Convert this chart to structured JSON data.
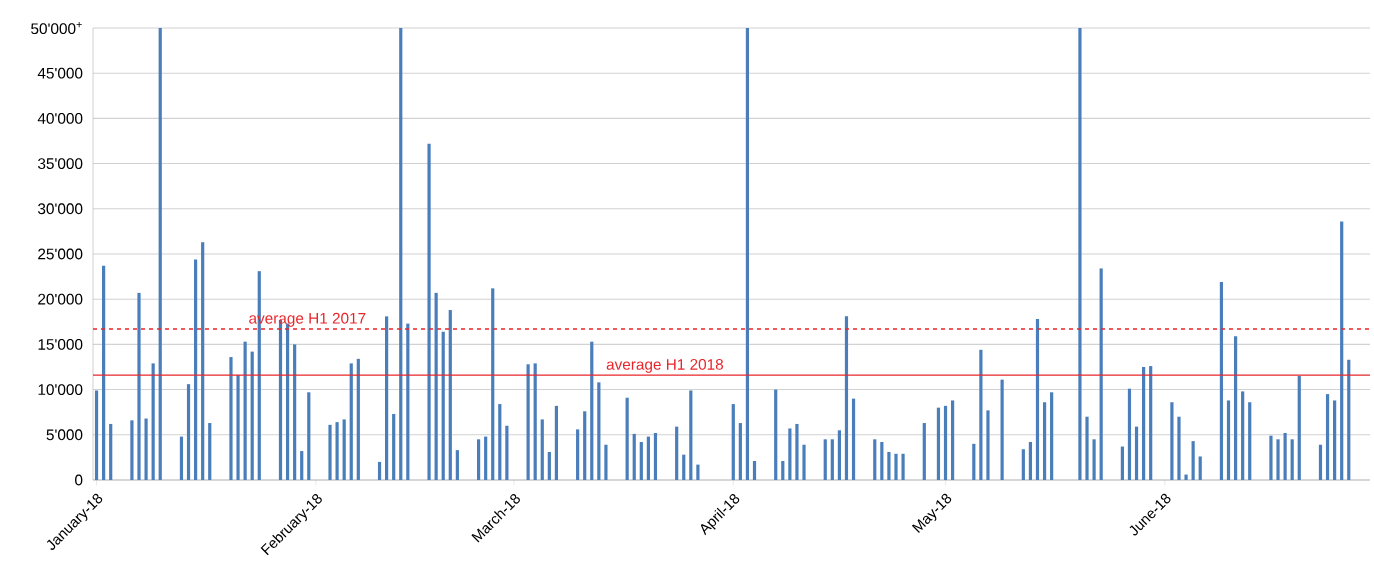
{
  "chart_data": {
    "type": "bar",
    "color": "#4a7ebb",
    "grid": "y",
    "x": [
      "2018-01-03",
      "2018-01-04",
      "2018-01-05",
      "2018-01-08",
      "2018-01-09",
      "2018-01-10",
      "2018-01-11",
      "2018-01-12",
      "2018-01-15",
      "2018-01-16",
      "2018-01-17",
      "2018-01-18",
      "2018-01-19",
      "2018-01-22",
      "2018-01-23",
      "2018-01-24",
      "2018-01-25",
      "2018-01-26",
      "2018-01-29",
      "2018-01-30",
      "2018-01-31",
      "2018-02-01",
      "2018-02-02",
      "2018-02-05",
      "2018-02-06",
      "2018-02-07",
      "2018-02-08",
      "2018-02-09",
      "2018-02-12",
      "2018-02-13",
      "2018-02-14",
      "2018-02-15",
      "2018-02-16",
      "2018-02-19",
      "2018-02-20",
      "2018-02-21",
      "2018-02-22",
      "2018-02-23",
      "2018-02-26",
      "2018-02-27",
      "2018-02-28",
      "2018-03-01",
      "2018-03-02",
      "2018-03-05",
      "2018-03-06",
      "2018-03-07",
      "2018-03-08",
      "2018-03-09",
      "2018-03-12",
      "2018-03-13",
      "2018-03-14",
      "2018-03-15",
      "2018-03-16",
      "2018-03-19",
      "2018-03-20",
      "2018-03-21",
      "2018-03-22",
      "2018-03-23",
      "2018-03-26",
      "2018-03-27",
      "2018-03-28",
      "2018-03-29",
      "2018-04-03",
      "2018-04-04",
      "2018-04-05",
      "2018-04-06",
      "2018-04-09",
      "2018-04-10",
      "2018-04-11",
      "2018-04-12",
      "2018-04-13",
      "2018-04-16",
      "2018-04-17",
      "2018-04-18",
      "2018-04-19",
      "2018-04-20",
      "2018-04-23",
      "2018-04-24",
      "2018-04-25",
      "2018-04-26",
      "2018-04-27",
      "2018-04-30",
      "2018-05-02",
      "2018-05-03",
      "2018-05-04",
      "2018-05-07",
      "2018-05-08",
      "2018-05-09",
      "2018-05-11",
      "2018-05-14",
      "2018-05-15",
      "2018-05-16",
      "2018-05-17",
      "2018-05-18",
      "2018-05-22",
      "2018-05-23",
      "2018-05-24",
      "2018-05-25",
      "2018-05-28",
      "2018-05-29",
      "2018-05-30",
      "2018-05-31",
      "2018-06-01",
      "2018-06-04",
      "2018-06-05",
      "2018-06-06",
      "2018-06-07",
      "2018-06-08",
      "2018-06-11",
      "2018-06-12",
      "2018-06-13",
      "2018-06-14",
      "2018-06-15",
      "2018-06-18",
      "2018-06-19",
      "2018-06-20",
      "2018-06-21",
      "2018-06-22",
      "2018-06-25",
      "2018-06-26",
      "2018-06-27",
      "2018-06-28",
      "2018-06-29"
    ],
    "values": [
      9900,
      23700,
      6200,
      6600,
      20700,
      6800,
      12900,
      50000,
      4800,
      10600,
      24400,
      26300,
      6300,
      13600,
      11600,
      15300,
      14200,
      23100,
      17700,
      17300,
      15000,
      3200,
      9700,
      6100,
      6400,
      6700,
      12900,
      13400,
      2000,
      18100,
      7300,
      50000,
      17300,
      37200,
      20700,
      16400,
      18800,
      3300,
      4500,
      4800,
      21200,
      8400,
      6000,
      12800,
      12900,
      6700,
      3100,
      8200,
      5600,
      7600,
      15300,
      10800,
      3900,
      9100,
      5100,
      4200,
      4800,
      5200,
      5900,
      2800,
      9900,
      1700,
      8400,
      6300,
      50000,
      2100,
      10000,
      2100,
      5700,
      6200,
      3900,
      4500,
      4500,
      5500,
      18100,
      9000,
      4500,
      4200,
      3100,
      2900,
      2900,
      6300,
      8000,
      8200,
      8800,
      4000,
      14400,
      7700,
      11100,
      3400,
      4200,
      17800,
      8600,
      9700,
      50000,
      7000,
      4500,
      23400,
      3700,
      10100,
      5900,
      12500,
      12600,
      8600,
      7000,
      600,
      4300,
      2600,
      21900,
      8800,
      15900,
      9800,
      8600,
      4900,
      4500,
      5200,
      4500,
      11500,
      3900,
      9500,
      8800,
      28600,
      13300
    ],
    "xlim": [
      "2018-01-02T12:00",
      "2018-07-02"
    ],
    "xticks": [
      {
        "value": "2018-01-03",
        "label": "January-18"
      },
      {
        "value": "2018-02-03",
        "label": "February-18"
      },
      {
        "value": "2018-03-03",
        "label": "March-18"
      },
      {
        "value": "2018-04-03",
        "label": "April-18"
      },
      {
        "value": "2018-05-03",
        "label": "May-18"
      },
      {
        "value": "2018-06-03",
        "label": "June-18"
      }
    ],
    "ylim": [
      0,
      50000
    ],
    "yticks": [
      0,
      {
        "value": 5000,
        "label": "5'000"
      },
      {
        "value": 10000,
        "label": "10'000"
      },
      {
        "value": 15000,
        "label": "15'000"
      },
      {
        "value": 20000,
        "label": "20'000"
      },
      {
        "value": 25000,
        "label": "25'000"
      },
      {
        "value": 30000,
        "label": "30'000"
      },
      {
        "value": 35000,
        "label": "35'000"
      },
      {
        "value": 40000,
        "label": "40'000"
      },
      {
        "value": 45000,
        "label": "45'000"
      },
      {
        "value": 50000,
        "label": "50'000$^{+}$"
      }
    ],
    "ref_lines": [
      {
        "axis": "y",
        "value": 16700,
        "label": "average H1 2017",
        "color": "#e8262a",
        "line_style": "dashed"
      },
      {
        "axis": "y",
        "value": 11600,
        "label": "average H1 2018",
        "color": "#e8262a",
        "line_style": "solid"
      }
    ]
  }
}
